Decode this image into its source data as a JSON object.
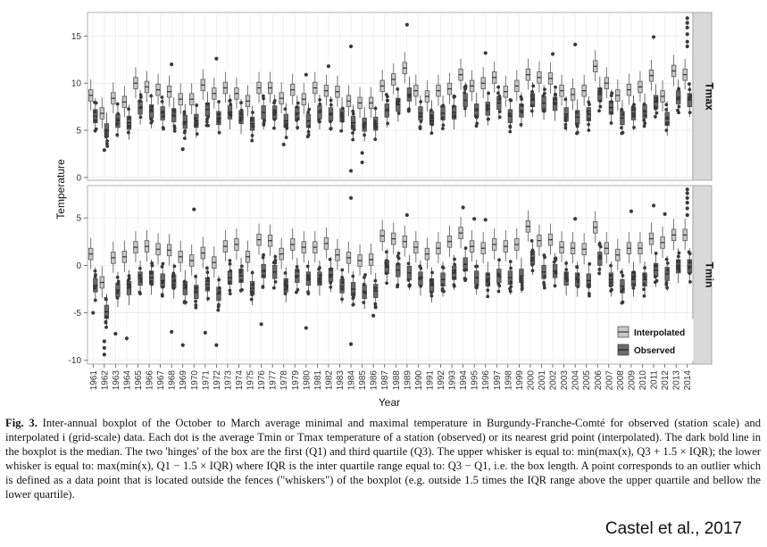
{
  "chart_data": {
    "type": "boxplot",
    "xlabel": "Year",
    "ylabel": "Temperature",
    "years": [
      1961,
      1962,
      1963,
      1964,
      1965,
      1966,
      1967,
      1968,
      1969,
      1970,
      1971,
      1972,
      1973,
      1974,
      1975,
      1976,
      1977,
      1978,
      1979,
      1980,
      1981,
      1982,
      1983,
      1984,
      1985,
      1986,
      1987,
      1988,
      1989,
      1990,
      1991,
      1992,
      1993,
      1994,
      1995,
      1996,
      1997,
      1998,
      1999,
      2000,
      2001,
      2002,
      2003,
      2004,
      2005,
      2006,
      2007,
      2008,
      2009,
      2010,
      2011,
      2012,
      2013,
      2014
    ],
    "legend": {
      "position": "bottom-right",
      "entries": [
        "Interpolated",
        "Observed"
      ]
    },
    "colors": {
      "interpolated": "#c8c8c8",
      "observed": "#6b6b6b",
      "point": "#3a3a3a",
      "strip": "#d9d9d9",
      "grid": "#e8e8e8"
    },
    "panels": [
      {
        "label": "Tmax",
        "ylim": [
          -0.3,
          17.5
        ],
        "yticks": [
          0,
          5,
          10,
          15
        ],
        "interpolated_median": [
          8.7,
          6.8,
          8.4,
          8.0,
          10.0,
          9.6,
          9.3,
          9.1,
          8.3,
          8.3,
          9.8,
          8.9,
          9.5,
          8.9,
          8.1,
          9.5,
          9.5,
          8.4,
          9.3,
          8.3,
          9.5,
          9.2,
          9.1,
          8.1,
          7.9,
          7.9,
          9.7,
          10.4,
          11.6,
          9.2,
          8.6,
          9.2,
          9.4,
          10.9,
          9.7,
          10.0,
          10.6,
          9.1,
          9.7,
          10.9,
          10.6,
          10.5,
          9.2,
          8.8,
          9.2,
          11.8,
          10.0,
          8.7,
          9.3,
          9.6,
          10.8,
          8.6,
          11.3,
          10.9
        ],
        "observed_median": [
          6.5,
          5.0,
          6.0,
          5.8,
          7.4,
          7.0,
          6.8,
          6.6,
          5.9,
          6.0,
          7.2,
          6.3,
          6.9,
          6.4,
          5.7,
          6.9,
          6.9,
          6.0,
          6.8,
          6.0,
          6.9,
          6.7,
          6.6,
          5.8,
          5.6,
          5.7,
          7.1,
          7.7,
          8.8,
          6.8,
          6.3,
          6.8,
          6.9,
          8.2,
          7.1,
          7.3,
          7.9,
          6.5,
          7.1,
          8.2,
          7.9,
          7.8,
          6.7,
          6.4,
          6.7,
          8.8,
          7.4,
          6.3,
          6.8,
          7.0,
          8.0,
          6.2,
          8.5,
          8.2
        ],
        "outliers": [
          [
            1962,
            2.9
          ],
          [
            1968,
            12.0
          ],
          [
            1969,
            3.0
          ],
          [
            1972,
            12.6
          ],
          [
            1978,
            3.5
          ],
          [
            1980,
            10.9
          ],
          [
            1982,
            11.8
          ],
          [
            1984,
            13.9
          ],
          [
            1984,
            0.7
          ],
          [
            1985,
            1.6
          ],
          [
            1985,
            2.6
          ],
          [
            1989,
            16.2
          ],
          [
            1996,
            13.2
          ],
          [
            2002,
            13.1
          ],
          [
            2004,
            14.1
          ],
          [
            2011,
            14.9
          ],
          [
            2014,
            16.9
          ],
          [
            2014,
            16.4
          ],
          [
            2014,
            15.9
          ],
          [
            2014,
            15.2
          ],
          [
            2014,
            14.4
          ],
          [
            2014,
            13.9
          ]
        ]
      },
      {
        "label": "Tmin",
        "ylim": [
          -10.4,
          8.4
        ],
        "yticks": [
          -10,
          -5,
          0,
          5
        ],
        "interpolated_median": [
          1.2,
          -1.8,
          0.8,
          0.9,
          1.9,
          2.0,
          1.7,
          1.6,
          0.9,
          0.5,
          1.3,
          0.3,
          2.0,
          2.2,
          0.9,
          2.7,
          2.6,
          1.2,
          2.2,
          1.9,
          1.9,
          2.3,
          1.1,
          0.8,
          0.5,
          0.6,
          3.1,
          2.8,
          2.5,
          1.9,
          1.2,
          1.8,
          2.5,
          3.4,
          2.0,
          1.8,
          2.2,
          2.0,
          2.2,
          4.1,
          2.6,
          2.7,
          1.9,
          1.8,
          1.7,
          4.0,
          1.8,
          1.1,
          1.8,
          1.8,
          2.8,
          2.4,
          3.2,
          3.2
        ],
        "observed_median": [
          -2.1,
          -4.9,
          -2.6,
          -2.4,
          -1.4,
          -1.3,
          -1.6,
          -1.7,
          -2.4,
          -2.8,
          -2.0,
          -3.0,
          -1.3,
          -1.1,
          -2.4,
          -0.6,
          -0.7,
          -2.1,
          -1.1,
          -1.4,
          -1.4,
          -1.0,
          -2.2,
          -2.5,
          -2.8,
          -2.7,
          -0.2,
          -0.5,
          -0.8,
          -1.4,
          -2.1,
          -1.5,
          -0.8,
          0.1,
          -1.3,
          -1.5,
          -1.1,
          -1.3,
          -1.1,
          0.8,
          -0.7,
          -0.6,
          -1.4,
          -1.5,
          -1.6,
          0.7,
          -1.5,
          -2.2,
          -1.5,
          -1.5,
          -0.5,
          -0.9,
          -0.1,
          -0.1
        ],
        "outliers": [
          [
            1961,
            -5.0
          ],
          [
            1962,
            -8.0
          ],
          [
            1962,
            -8.7
          ],
          [
            1962,
            -9.4
          ],
          [
            1963,
            -7.2
          ],
          [
            1964,
            -7.7
          ],
          [
            1968,
            -7.0
          ],
          [
            1969,
            -8.4
          ],
          [
            1970,
            5.9
          ],
          [
            1971,
            -7.1
          ],
          [
            1972,
            -8.4
          ],
          [
            1976,
            -6.2
          ],
          [
            1980,
            -6.6
          ],
          [
            1984,
            7.1
          ],
          [
            1984,
            -8.3
          ],
          [
            1986,
            -5.3
          ],
          [
            1989,
            5.3
          ],
          [
            1994,
            6.1
          ],
          [
            1995,
            4.9
          ],
          [
            1996,
            4.8
          ],
          [
            2004,
            4.9
          ],
          [
            2009,
            5.7
          ],
          [
            2011,
            6.3
          ],
          [
            2012,
            5.4
          ],
          [
            2014,
            8.0
          ],
          [
            2014,
            7.6
          ],
          [
            2014,
            7.1
          ],
          [
            2014,
            6.6
          ],
          [
            2014,
            6.0
          ],
          [
            2014,
            5.3
          ]
        ]
      }
    ]
  },
  "caption": {
    "fig_label": "Fig. 3.",
    "text": "Inter-annual boxplot of the October to March average minimal and maximal temperature in Burgundy-Franche-Comté for observed (station scale) and interpolated i (grid-scale) data. Each dot is the average Tmin or Tmax temperature of a station (observed) or its nearest grid point (interpolated). The dark bold line in the boxplot is the median. The two 'hinges' of the box are the first (Q1) and third quartile (Q3). The upper whisker is equal to: min(max(x), Q3 + 1.5 × IQR); the lower whisker is equal to: max(min(x), Q1 − 1.5 × IQR) where IQR is the inter quartile range equal to: Q3 − Q1, i.e. the box length. A point corresponds to an outlier which is defined as a data point that is located outside the fences (\"whiskers\") of the boxplot (e.g. outside 1.5 times the IQR range above the upper quartile and bellow the lower quartile)."
  },
  "credit": "Castel et al., 2017"
}
